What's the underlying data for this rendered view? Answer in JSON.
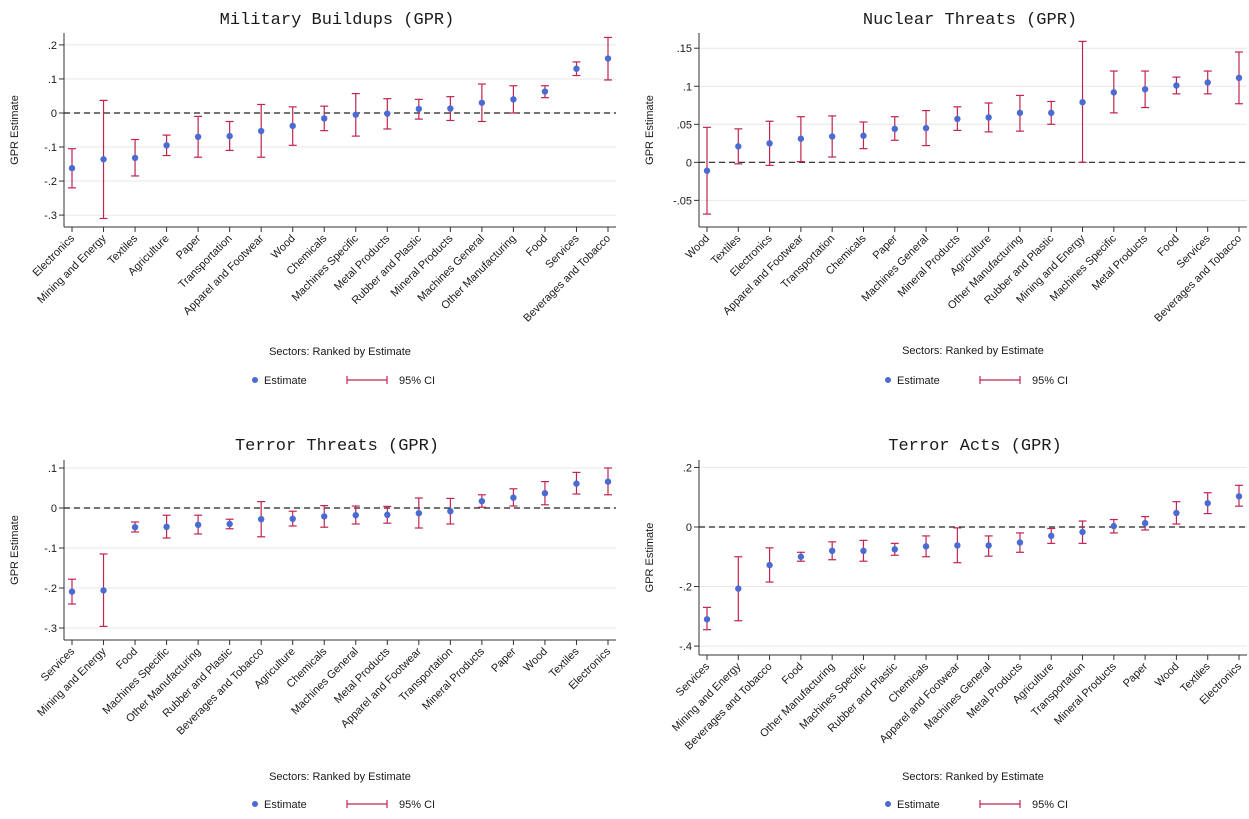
{
  "style": {
    "point_color": "#4a6bd3",
    "ci_color": "#c0244f",
    "zero_line_color": "#222222",
    "grid_color": "#e7e7e7"
  },
  "chart_data": [
    {
      "type": "scatter",
      "title": "Military Buildups (GPR)",
      "xlabel": "Sectors: Ranked by Estimate",
      "ylabel": "GPR Estimate",
      "ylim": [
        -0.335,
        0.235
      ],
      "yticks": [
        -0.3,
        -0.2,
        -0.1,
        0,
        0.1,
        0.2
      ],
      "ytick_labels": [
        "-.3",
        "-.2",
        "-.1",
        "0",
        ".1",
        ".2"
      ],
      "grid": true,
      "legend": {
        "placement": "bottom",
        "entries": [
          "Estimate",
          "95% CI"
        ]
      },
      "categories": [
        "Electronics",
        "Mining and Energy",
        "Textiles",
        "Agriculture",
        "Paper",
        "Transportation",
        "Apparel and Footwear",
        "Wood",
        "Chemicals",
        "Machines Specific",
        "Metal Products",
        "Rubber and Plastic",
        "Mineral Products",
        "Machines General",
        "Other Manufacturing",
        "Food",
        "Services",
        "Beverages and Tobacco"
      ],
      "estimate": [
        -0.162,
        -0.136,
        -0.132,
        -0.095,
        -0.07,
        -0.068,
        -0.053,
        -0.038,
        -0.016,
        -0.005,
        -0.002,
        0.012,
        0.013,
        0.03,
        0.04,
        0.063,
        0.13,
        0.16
      ],
      "ci_low": [
        -0.22,
        -0.31,
        -0.185,
        -0.125,
        -0.13,
        -0.11,
        -0.13,
        -0.095,
        -0.052,
        -0.068,
        -0.047,
        -0.018,
        -0.022,
        -0.025,
        0.0,
        0.045,
        0.11,
        0.097
      ],
      "ci_high": [
        -0.105,
        0.037,
        -0.078,
        -0.065,
        -0.01,
        -0.025,
        0.025,
        0.018,
        0.02,
        0.057,
        0.042,
        0.04,
        0.048,
        0.085,
        0.08,
        0.08,
        0.15,
        0.222
      ]
    },
    {
      "type": "scatter",
      "title": "Nuclear Threats (GPR)",
      "xlabel": "Sectors: Ranked by Estimate",
      "ylabel": "GPR Estimate",
      "ylim": [
        -0.085,
        0.17
      ],
      "yticks": [
        -0.05,
        0,
        0.05,
        0.1,
        0.15
      ],
      "ytick_labels": [
        "-.05",
        "0",
        ".05",
        ".1",
        ".15"
      ],
      "grid": true,
      "legend": {
        "placement": "bottom",
        "entries": [
          "Estimate",
          "95% CI"
        ]
      },
      "categories": [
        "Wood",
        "Textiles",
        "Electronics",
        "Apparel and Footwear",
        "Transportation",
        "Chemicals",
        "Paper",
        "Machines General",
        "Mineral Products",
        "Agriculture",
        "Other Manufacturing",
        "Rubber and Plastic",
        "Mining and Energy",
        "Machines Specific",
        "Metal Products",
        "Food",
        "Services",
        "Beverages and Tobacco"
      ],
      "estimate": [
        -0.011,
        0.021,
        0.025,
        0.031,
        0.034,
        0.035,
        0.044,
        0.045,
        0.057,
        0.059,
        0.065,
        0.065,
        0.079,
        0.092,
        0.096,
        0.101,
        0.105,
        0.111
      ],
      "ci_low": [
        -0.068,
        -0.002,
        -0.004,
        0.001,
        0.007,
        0.018,
        0.029,
        0.022,
        0.042,
        0.04,
        0.041,
        0.05,
        0.0,
        0.065,
        0.072,
        0.09,
        0.09,
        0.077
      ],
      "ci_high": [
        0.046,
        0.044,
        0.054,
        0.06,
        0.061,
        0.053,
        0.06,
        0.068,
        0.073,
        0.078,
        0.088,
        0.08,
        0.159,
        0.12,
        0.12,
        0.112,
        0.12,
        0.145
      ]
    },
    {
      "type": "scatter",
      "title": "Terror Threats (GPR)",
      "xlabel": "Sectors: Ranked by Estimate",
      "ylabel": "GPR Estimate",
      "ylim": [
        -0.33,
        0.12
      ],
      "yticks": [
        -0.3,
        -0.2,
        -0.1,
        0,
        0.1
      ],
      "ytick_labels": [
        "-.3",
        "-.2",
        "-.1",
        "0",
        ".1"
      ],
      "grid": true,
      "legend": {
        "placement": "bottom",
        "entries": [
          "Estimate",
          "95% CI"
        ]
      },
      "categories": [
        "Services",
        "Mining and Energy",
        "Food",
        "Machines Specific",
        "Other Manufacturing",
        "Rubber and Plastic",
        "Beverages and Tobacco",
        "Agriculture",
        "Chemicals",
        "Machines General",
        "Metal Products",
        "Apparel and Footwear",
        "Transportation",
        "Mineral Products",
        "Paper",
        "Wood",
        "Textiles",
        "Electronics"
      ],
      "estimate": [
        -0.209,
        -0.206,
        -0.048,
        -0.047,
        -0.042,
        -0.04,
        -0.028,
        -0.027,
        -0.021,
        -0.018,
        -0.017,
        -0.013,
        -0.008,
        0.017,
        0.026,
        0.037,
        0.061,
        0.066
      ],
      "ci_low": [
        -0.24,
        -0.296,
        -0.06,
        -0.075,
        -0.065,
        -0.052,
        -0.072,
        -0.045,
        -0.048,
        -0.04,
        -0.038,
        -0.05,
        -0.04,
        0.002,
        0.005,
        0.008,
        0.035,
        0.033
      ],
      "ci_high": [
        -0.178,
        -0.115,
        -0.035,
        -0.018,
        -0.018,
        -0.028,
        0.016,
        -0.008,
        0.006,
        0.005,
        0.004,
        0.025,
        0.024,
        0.033,
        0.048,
        0.066,
        0.089,
        0.1
      ]
    },
    {
      "type": "scatter",
      "title": "Terror Acts (GPR)",
      "xlabel": "Sectors: Ranked by Estimate",
      "ylabel": "GPR Estimate",
      "ylim": [
        -0.43,
        0.225
      ],
      "yticks": [
        -0.4,
        -0.2,
        0,
        0.2
      ],
      "ytick_labels": [
        "-.4",
        "-.2",
        "0",
        ".2"
      ],
      "grid": true,
      "legend": {
        "placement": "bottom",
        "entries": [
          "Estimate",
          "95% CI"
        ]
      },
      "categories": [
        "Services",
        "Mining and Energy",
        "Beverages and Tobacco",
        "Food",
        "Other Manufacturing",
        "Machines Specific",
        "Rubber and Plastic",
        "Chemicals",
        "Apparel and Footwear",
        "Machines General",
        "Metal Products",
        "Agriculture",
        "Transportation",
        "Mineral Products",
        "Paper",
        "Wood",
        "Textiles",
        "Electronics"
      ],
      "estimate": [
        -0.31,
        -0.207,
        -0.128,
        -0.1,
        -0.08,
        -0.08,
        -0.075,
        -0.065,
        -0.062,
        -0.062,
        -0.052,
        -0.03,
        -0.017,
        0.003,
        0.013,
        0.047,
        0.08,
        0.103
      ],
      "ci_low": [
        -0.345,
        -0.315,
        -0.185,
        -0.115,
        -0.11,
        -0.115,
        -0.095,
        -0.1,
        -0.12,
        -0.098,
        -0.085,
        -0.055,
        -0.055,
        -0.02,
        -0.01,
        0.01,
        0.045,
        0.07
      ],
      "ci_high": [
        -0.27,
        -0.1,
        -0.07,
        -0.085,
        -0.05,
        -0.045,
        -0.055,
        -0.03,
        -0.003,
        -0.03,
        -0.02,
        -0.005,
        0.02,
        0.025,
        0.035,
        0.085,
        0.115,
        0.14
      ]
    }
  ]
}
